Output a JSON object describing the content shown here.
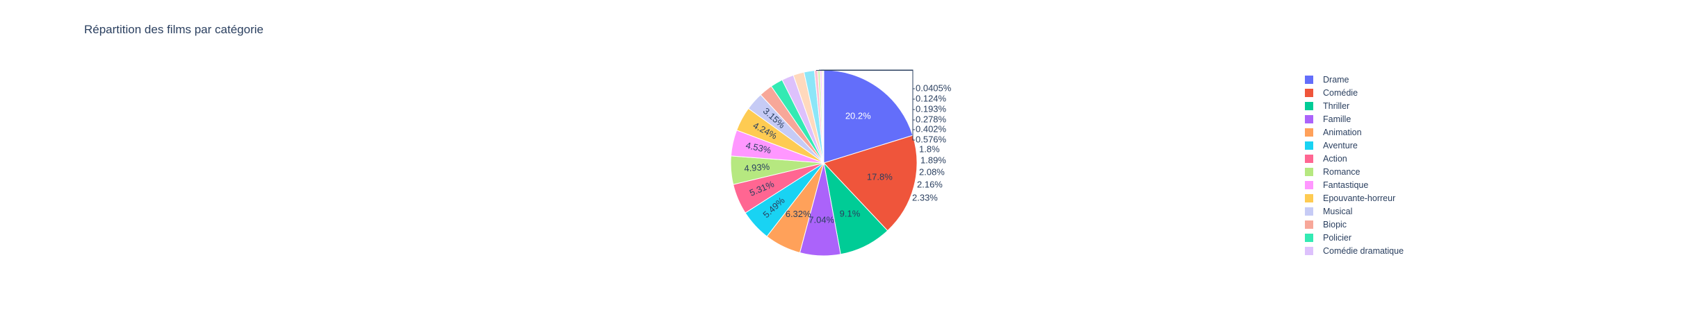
{
  "chart_data": {
    "type": "pie",
    "title": "Répartition des films par catégorie",
    "legend_position": "right",
    "slices": [
      {
        "label": "Drame",
        "value": 20.2,
        "text": "20.2%",
        "color": "#636efa"
      },
      {
        "label": "Comédie",
        "value": 17.8,
        "text": "17.8%",
        "color": "#EF553B"
      },
      {
        "label": "Thriller",
        "value": 9.1,
        "text": "9.1%",
        "color": "#00cc96"
      },
      {
        "label": "Famille",
        "value": 7.04,
        "text": "7.04%",
        "color": "#ab63fa"
      },
      {
        "label": "Animation",
        "value": 6.32,
        "text": "6.32%",
        "color": "#FFA15A"
      },
      {
        "label": "Aventure",
        "value": 5.49,
        "text": "5.49%",
        "color": "#19d3f3"
      },
      {
        "label": "Action",
        "value": 5.31,
        "text": "5.31%",
        "color": "#FF6692"
      },
      {
        "label": "Romance",
        "value": 4.93,
        "text": "4.93%",
        "color": "#B6E880"
      },
      {
        "label": "Fantastique",
        "value": 4.53,
        "text": "4.53%",
        "color": "#FF97FF"
      },
      {
        "label": "Epouvante-horreur",
        "value": 4.24,
        "text": "4.24%",
        "color": "#FECB52"
      },
      {
        "label": "Musical",
        "value": 3.15,
        "text": "3.15%",
        "color": "#c6cbf5"
      },
      {
        "label": "Biopic",
        "value": 2.33,
        "text": "2.33%",
        "color": "#f7a799"
      },
      {
        "label": "Policier",
        "value": 2.16,
        "text": "2.16%",
        "color": "#33eab3"
      },
      {
        "label": "Comédie dramatique",
        "value": 2.08,
        "text": "2.08%",
        "color": "#ddc1fc"
      },
      {
        "label": "",
        "value": 1.89,
        "text": "1.89%",
        "color": "#ffd9bd"
      },
      {
        "label": "",
        "value": 1.8,
        "text": "1.8%",
        "color": "#8ce6f8"
      },
      {
        "label": "",
        "value": 0.576,
        "text": "0.576%",
        "color": "#ffc2d3"
      },
      {
        "label": "",
        "value": 0.402,
        "text": "0.402%",
        "color": "#d3f1b3"
      },
      {
        "label": "",
        "value": 0.278,
        "text": "0.278%",
        "color": "#ffc1ff"
      },
      {
        "label": "",
        "value": 0.193,
        "text": "0.193%",
        "color": "#fee0a8"
      },
      {
        "label": "",
        "value": 0.124,
        "text": "0.124%",
        "color": "#636efa"
      },
      {
        "label": "",
        "value": 0.0405,
        "text": "0.0405%",
        "color": "#EF553B"
      }
    ]
  }
}
